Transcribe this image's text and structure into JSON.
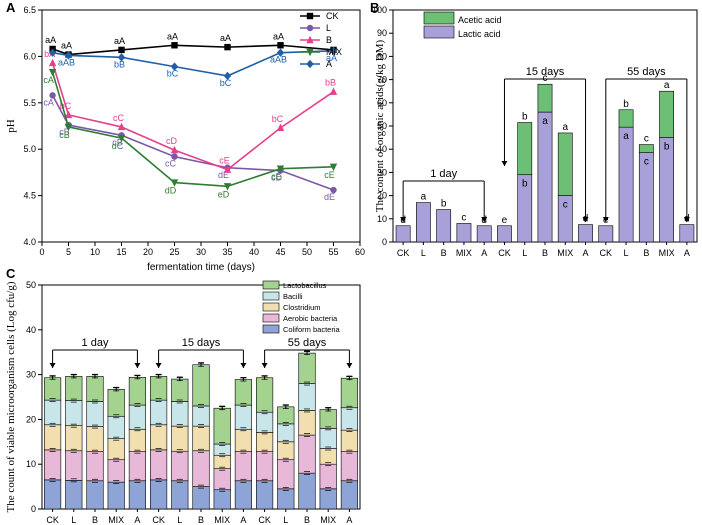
{
  "chart_data": [
    {
      "panel": "A",
      "type": "line",
      "xlabel": "fermentation time (days)",
      "ylabel": "pH",
      "xlim": [
        0,
        60
      ],
      "ylim": [
        4.0,
        6.5
      ],
      "xticks": [
        0,
        5,
        10,
        15,
        20,
        25,
        30,
        35,
        40,
        45,
        50,
        55,
        60
      ],
      "yticks": [
        4.0,
        4.5,
        5.0,
        5.5,
        6.0,
        6.5
      ],
      "x": [
        2,
        5,
        15,
        25,
        35,
        45,
        55
      ],
      "series": [
        {
          "name": "CK",
          "color": "#000000",
          "marker": "square",
          "values": [
            6.08,
            6.02,
            6.07,
            6.12,
            6.1,
            6.12,
            6.07
          ],
          "labels": [
            "aA",
            "aA",
            "aA",
            "aA",
            "aA",
            "aA",
            ""
          ]
        },
        {
          "name": "L",
          "color": "#7b57a8",
          "marker": "circle",
          "values": [
            5.58,
            5.26,
            5.15,
            4.92,
            4.8,
            4.77,
            4.56
          ],
          "labels": [
            "cA",
            "cB",
            "cB",
            "cC",
            "dE",
            "cD",
            "dE"
          ]
        },
        {
          "name": "B",
          "color": "#e83e8c",
          "marker": "triangle-up",
          "values": [
            5.93,
            5.37,
            5.24,
            4.99,
            4.78,
            5.23,
            5.62
          ],
          "labels": [
            "bA",
            "bC",
            "cC",
            "cD",
            "cE",
            "bC",
            "bB"
          ]
        },
        {
          "name": "MIX",
          "color": "#2e7d32",
          "marker": "triangle-down",
          "values": [
            5.83,
            5.24,
            5.12,
            4.64,
            4.6,
            4.79,
            4.81
          ],
          "labels": [
            "cA",
            "cB",
            "dC",
            "dD",
            "eD",
            "cE",
            "cE"
          ]
        },
        {
          "name": "A",
          "color": "#1f5fa8",
          "marker": "diamond",
          "values": [
            6.04,
            6.01,
            5.99,
            5.89,
            5.79,
            6.04,
            6.06
          ],
          "labels": [
            "",
            "aAB",
            "bB",
            "bC",
            "bC",
            "aAB",
            "aA"
          ]
        }
      ]
    },
    {
      "panel": "B",
      "type": "bar",
      "stacked": true,
      "ylabel": "The content of organic acids(g/kg DM)",
      "ylim": [
        0,
        100
      ],
      "yticks": [
        0,
        10,
        20,
        30,
        40,
        50,
        60,
        70,
        80,
        90,
        100
      ],
      "categories": [
        "CK",
        "L",
        "B",
        "MIX",
        "A",
        "CK",
        "L",
        "B",
        "MIX",
        "A",
        "CK",
        "L",
        "B",
        "MIX",
        "A"
      ],
      "groups": [
        "1 day",
        "15 days",
        "55 days"
      ],
      "series": [
        {
          "name": "Lactic acid",
          "color": "#a8a0d8",
          "values": [
            7,
            17,
            14,
            8,
            7,
            7,
            29,
            56,
            20,
            7.5,
            7,
            49.5,
            38.5,
            45,
            7.5
          ],
          "labels": [
            "d",
            "a",
            "b",
            "c",
            "d",
            "e",
            "b",
            "a",
            "c",
            "d",
            "e",
            "a",
            "c",
            "b",
            "d"
          ]
        },
        {
          "name": "Acetic acid",
          "color": "#6cbf74",
          "values": [
            0,
            0,
            0,
            0,
            0,
            0,
            22.5,
            12,
            27,
            0,
            0,
            7.5,
            3.5,
            20,
            0
          ],
          "labels": [
            "",
            "",
            "",
            "",
            "",
            "",
            "b",
            "c",
            "a",
            "",
            "",
            "b",
            "c",
            "a",
            ""
          ]
        }
      ]
    },
    {
      "panel": "C",
      "type": "bar",
      "stacked": true,
      "ylabel": "The count of viable microorganism cells (Log cfu/g)",
      "ylim": [
        0,
        50
      ],
      "yticks": [
        0,
        10,
        20,
        30,
        40,
        50
      ],
      "categories": [
        "CK",
        "L",
        "B",
        "MIX",
        "A",
        "CK",
        "L",
        "B",
        "MIX",
        "A",
        "CK",
        "L",
        "B",
        "MIX",
        "A"
      ],
      "groups": [
        "1 day",
        "15 days",
        "55 days"
      ],
      "series": [
        {
          "name": "Coliform bacteria",
          "color": "#8fa4d6",
          "values": [
            6.5,
            6.4,
            6.3,
            6.0,
            6.3,
            6.5,
            6.3,
            5.0,
            4.3,
            6.3,
            6.3,
            4.5,
            8.0,
            4.5,
            6.3
          ]
        },
        {
          "name": "Aerobic bacteria",
          "color": "#e8b8d8",
          "values": [
            6.7,
            6.6,
            6.5,
            5.0,
            6.5,
            6.7,
            6.6,
            8.0,
            4.7,
            6.5,
            6.5,
            6.5,
            8.5,
            5.5,
            6.5
          ]
        },
        {
          "name": "Clostridium",
          "color": "#f1dfb0",
          "values": [
            5.6,
            5.6,
            5.6,
            4.7,
            5.0,
            5.6,
            5.6,
            5.5,
            3.0,
            5.0,
            4.3,
            4.0,
            5.5,
            3.5,
            4.8
          ]
        },
        {
          "name": "Bacilli",
          "color": "#c8e6ea",
          "values": [
            5.5,
            5.6,
            5.6,
            5.0,
            5.4,
            5.5,
            5.5,
            4.5,
            2.5,
            5.4,
            4.5,
            4.0,
            6.0,
            4.5,
            5.0
          ]
        },
        {
          "name": "Lactobacillus",
          "color": "#a3d38e",
          "values": [
            5.0,
            5.4,
            5.6,
            6.0,
            6.2,
            5.3,
            5.0,
            9.2,
            8.0,
            5.7,
            7.7,
            3.8,
            6.8,
            4.2,
            6.6
          ]
        }
      ]
    }
  ],
  "panel_labels": {
    "a": "A",
    "b": "B",
    "c": "C"
  }
}
